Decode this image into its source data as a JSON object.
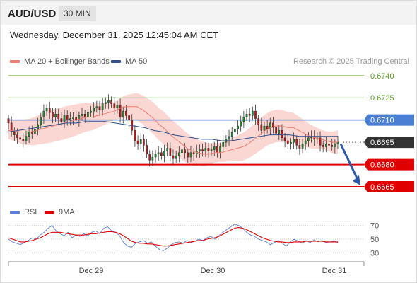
{
  "header": {
    "symbol": "AUD/USD",
    "timeframe": "30 MIN",
    "datetime": "Wednesday, December 31, 2025 12:45:04 AM CET"
  },
  "legend": {
    "ma20": "MA 20 + Bollinger Bands",
    "ma50": "MA 50",
    "credit": "Research © 2025 Trading Central"
  },
  "indicator_legend": {
    "rsi": "RSI",
    "ma9": "9MA"
  },
  "colors": {
    "target_green": "#8fc45a",
    "target_green_text": "#5a9e1e",
    "pivot_blue": "#4a7fd4",
    "support_red": "#e00000",
    "ma20": "#f07c70",
    "ma50": "#2e4f8c",
    "band_fill": "#f8c9c4",
    "arrow": "#2b5aa8",
    "rsi": "#5b7fd6",
    "rsi_ma": "#e00000",
    "candle_up": "#1f8a2e",
    "candle_down": "#b81c1c"
  },
  "chart_data": [
    {
      "type": "candlestick",
      "title": "AUD/USD 30 MIN",
      "x_ticks": [
        "Dec 29",
        "Dec 30",
        "Dec 31"
      ],
      "ylim": [
        0.6655,
        0.6748
      ],
      "levels": [
        {
          "value": 0.674,
          "label": "0.6740",
          "kind": "target"
        },
        {
          "value": 0.6725,
          "label": "0.6725",
          "kind": "target"
        },
        {
          "value": 0.671,
          "label": "0.6710",
          "kind": "pivot"
        },
        {
          "value": 0.6695,
          "label": "0.6695",
          "kind": "last"
        },
        {
          "value": 0.668,
          "label": "0.6680",
          "kind": "support"
        },
        {
          "value": 0.6665,
          "label": "0.6665",
          "kind": "support"
        }
      ],
      "close": [
        0.6708,
        0.6702,
        0.67,
        0.6698,
        0.6697,
        0.6696,
        0.6699,
        0.6702,
        0.6701,
        0.6704,
        0.6707,
        0.6712,
        0.6716,
        0.6718,
        0.6715,
        0.6712,
        0.6714,
        0.6711,
        0.6709,
        0.6713,
        0.671,
        0.6711,
        0.6712,
        0.671,
        0.6713,
        0.6714,
        0.6712,
        0.6715,
        0.6716,
        0.6718,
        0.6719,
        0.6717,
        0.6721,
        0.6722,
        0.6723,
        0.6721,
        0.6718,
        0.672,
        0.6712,
        0.6716,
        0.6713,
        0.671,
        0.6703,
        0.6696,
        0.6694,
        0.6697,
        0.6693,
        0.6687,
        0.6683,
        0.6685,
        0.6687,
        0.6688,
        0.6686,
        0.6689,
        0.6691,
        0.6686,
        0.6684,
        0.6686,
        0.6688,
        0.669,
        0.6688,
        0.6685,
        0.6688,
        0.6687,
        0.6689,
        0.669,
        0.6689,
        0.6691,
        0.6689,
        0.669,
        0.6692,
        0.6688,
        0.6692,
        0.6695,
        0.6697,
        0.6699,
        0.6702,
        0.6704,
        0.6706,
        0.6709,
        0.6712,
        0.6714,
        0.6713,
        0.6716,
        0.6711,
        0.6707,
        0.6703,
        0.6706,
        0.6704,
        0.6708,
        0.6705,
        0.6701,
        0.6703,
        0.6698,
        0.6696,
        0.6694,
        0.6695,
        0.6697,
        0.6693,
        0.6691,
        0.6694,
        0.6696,
        0.6698,
        0.6699,
        0.6697,
        0.6698,
        0.6693,
        0.6692,
        0.6694,
        0.6693,
        0.6692,
        0.6694,
        0.6695
      ],
      "ma20": [
        0.6703,
        0.6703,
        0.6702,
        0.6702,
        0.6702,
        0.6703,
        0.6704,
        0.6705,
        0.6706,
        0.6707,
        0.6708,
        0.6709,
        0.671,
        0.6711,
        0.6712,
        0.6712,
        0.6713,
        0.6714,
        0.6715,
        0.6716,
        0.6718,
        0.6719,
        0.6719,
        0.6719,
        0.6717,
        0.6714,
        0.6711,
        0.6707,
        0.6704,
        0.67,
        0.6697,
        0.6694,
        0.6691,
        0.6689,
        0.6688,
        0.6687,
        0.6687,
        0.6688,
        0.6688,
        0.6689,
        0.669,
        0.6691,
        0.6692,
        0.6694,
        0.6697,
        0.67,
        0.6703,
        0.6705,
        0.6706,
        0.6706,
        0.6705,
        0.6705,
        0.6703,
        0.6701,
        0.6699,
        0.6698,
        0.6697,
        0.6696,
        0.6695,
        0.6695
      ],
      "ma50": [
        0.6702,
        0.6703,
        0.6704,
        0.6705,
        0.6706,
        0.6707,
        0.6708,
        0.6708,
        0.6709,
        0.6709,
        0.6709,
        0.6708,
        0.6707,
        0.6706,
        0.6705,
        0.6703,
        0.6702,
        0.67,
        0.6699,
        0.6698,
        0.6697,
        0.6697,
        0.6696,
        0.6696,
        0.6697,
        0.6698,
        0.6699,
        0.67,
        0.67,
        0.67,
        0.6699,
        0.6699,
        0.6699,
        0.6699,
        0.6699
      ]
    },
    {
      "type": "line",
      "title": "RSI",
      "y_ticks": [
        70,
        50,
        30
      ],
      "ylim": [
        20,
        80
      ],
      "series": [
        {
          "name": "RSI",
          "values": [
            50,
            46,
            44,
            42,
            45,
            48,
            52,
            50,
            56,
            60,
            66,
            70,
            62,
            58,
            55,
            60,
            52,
            56,
            54,
            58,
            55,
            60,
            62,
            58,
            66,
            68,
            62,
            60,
            55,
            45,
            40,
            38,
            44,
            46,
            48,
            44,
            46,
            40,
            35,
            33,
            37,
            42,
            45,
            46,
            44,
            48,
            45,
            47,
            50,
            48,
            52,
            54,
            50,
            55,
            60,
            64,
            68,
            72,
            70,
            66,
            60,
            56,
            54,
            50,
            48,
            46,
            42,
            45,
            48,
            44,
            40,
            46,
            50,
            47,
            44,
            48,
            45,
            49,
            46,
            48,
            45,
            46,
            47,
            45
          ]
        },
        {
          "name": "9MA",
          "values": [
            52,
            50,
            48,
            46,
            46,
            47,
            48,
            50,
            52,
            55,
            58,
            60,
            60,
            60,
            59,
            58,
            57,
            56,
            56,
            56,
            57,
            58,
            58,
            59,
            60,
            61,
            61,
            60,
            58,
            55,
            51,
            47,
            45,
            44,
            44,
            43,
            43,
            42,
            41,
            40,
            40,
            41,
            42,
            43,
            44,
            45,
            46,
            47,
            48,
            48,
            50,
            51,
            52,
            54,
            57,
            60,
            63,
            66,
            67,
            66,
            64,
            61,
            58,
            55,
            52,
            50,
            48,
            47,
            46,
            46,
            45,
            45,
            46,
            46,
            46,
            47,
            47,
            47,
            47,
            47,
            46,
            46,
            46,
            46
          ]
        }
      ]
    }
  ]
}
